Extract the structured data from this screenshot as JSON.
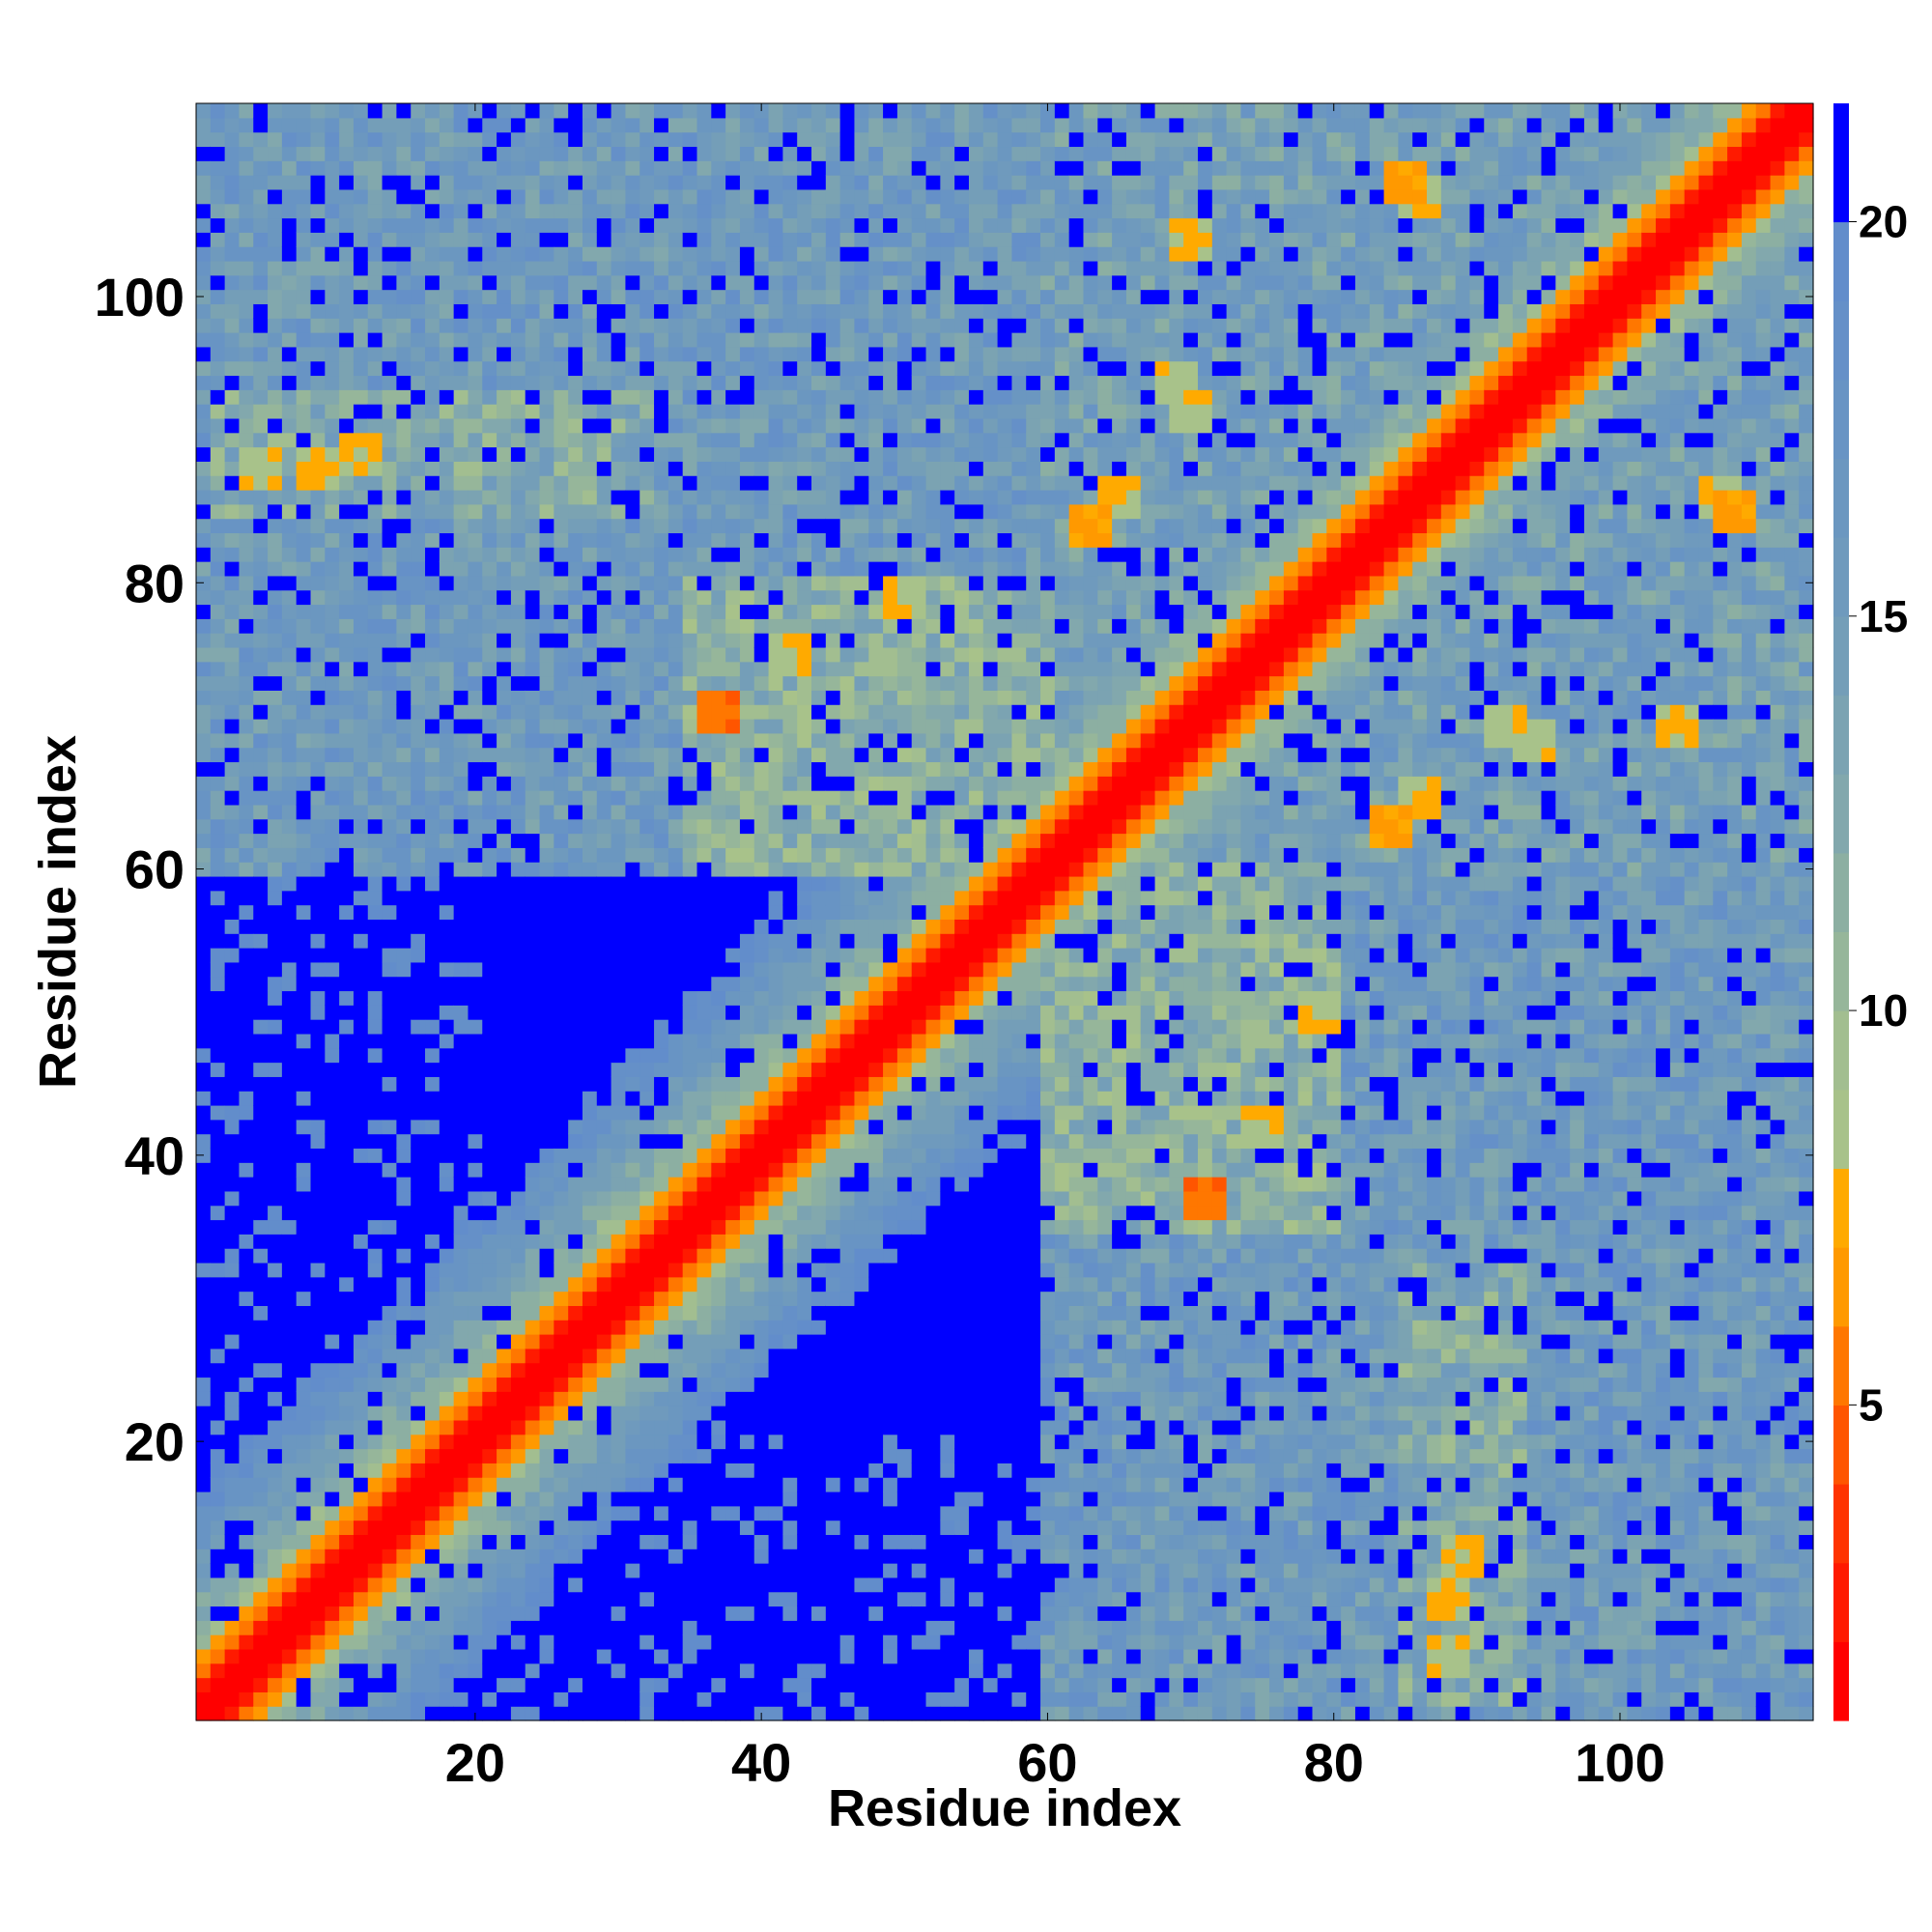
{
  "chart_data": {
    "type": "heatmap",
    "title": "",
    "xlabel": "Residue index",
    "ylabel": "Residue index",
    "n_residues": 113,
    "xlim": [
      1,
      113
    ],
    "ylim": [
      1,
      113
    ],
    "x_ticks": [
      "20",
      "40",
      "60",
      "80",
      "100"
    ],
    "y_ticks": [
      "20",
      "40",
      "60",
      "80",
      "100"
    ],
    "colorbar": {
      "ticks": [
        "5",
        "10",
        "15",
        "20"
      ],
      "range": [
        1,
        21.5
      ],
      "levels": [
        {
          "max": 2,
          "color": "#ff0000"
        },
        {
          "max": 3,
          "color": "#ff1a00"
        },
        {
          "max": 4,
          "color": "#ff3300"
        },
        {
          "max": 5,
          "color": "#ff5500"
        },
        {
          "max": 6,
          "color": "#ff7700"
        },
        {
          "max": 7,
          "color": "#ff9900"
        },
        {
          "max": 8,
          "color": "#ffaa00"
        },
        {
          "max": 9,
          "color": "#a8c28a"
        },
        {
          "max": 10,
          "color": "#a2be90"
        },
        {
          "max": 11,
          "color": "#96b69a"
        },
        {
          "max": 12,
          "color": "#8cafa2"
        },
        {
          "max": 13,
          "color": "#82a8ad"
        },
        {
          "max": 14,
          "color": "#7ba3b2"
        },
        {
          "max": 15,
          "color": "#749eb8"
        },
        {
          "max": 16,
          "color": "#6f9abd"
        },
        {
          "max": 17,
          "color": "#6b97c0"
        },
        {
          "max": 18,
          "color": "#6894c4"
        },
        {
          "max": 19,
          "color": "#6590c8"
        },
        {
          "max": 20,
          "color": "#628dcb"
        },
        {
          "max": 999,
          "color": "#0000ff"
        }
      ]
    },
    "description_values": {
      "diagonal_distance": 1.0,
      "near_diagonal_distance": 6.0,
      "background_distance": 22.0
    },
    "contact_blocks": [
      {
        "x": [
          60,
          113
        ],
        "y": [
          60,
          113
        ],
        "level": 15
      },
      {
        "x": [
          60,
          113
        ],
        "y": [
          1,
          60
        ],
        "level": 16
      },
      {
        "x": [
          1,
          60
        ],
        "y": [
          60,
          113
        ],
        "level": 16
      },
      {
        "x": [
          2,
          32
        ],
        "y": [
          85,
          93
        ],
        "level": 13
      },
      {
        "x": [
          85,
          93
        ],
        "y": [
          2,
          32
        ],
        "level": 13
      },
      {
        "x": [
          35,
          60
        ],
        "y": [
          60,
          80
        ],
        "level": 12
      },
      {
        "x": [
          60,
          80
        ],
        "y": [
          35,
          60
        ],
        "level": 12
      },
      {
        "x": [
          1,
          60
        ],
        "y": [
          1,
          20
        ],
        "level": 22
      },
      {
        "x": [
          1,
          20
        ],
        "y": [
          1,
          60
        ],
        "level": 22
      }
    ],
    "hotspots": [
      {
        "x": 85,
        "y": 108,
        "v": 6
      },
      {
        "x": 86,
        "y": 107,
        "v": 7
      },
      {
        "x": 108,
        "y": 85,
        "v": 6
      },
      {
        "x": 107,
        "y": 86,
        "v": 7
      },
      {
        "x": 65,
        "y": 86,
        "v": 7
      },
      {
        "x": 63,
        "y": 84,
        "v": 6
      },
      {
        "x": 86,
        "y": 65,
        "v": 7
      },
      {
        "x": 84,
        "y": 63,
        "v": 6
      },
      {
        "x": 69,
        "y": 94,
        "v": 7
      },
      {
        "x": 94,
        "y": 69,
        "v": 7
      },
      {
        "x": 5,
        "y": 88,
        "v": 7
      },
      {
        "x": 9,
        "y": 88,
        "v": 7
      },
      {
        "x": 12,
        "y": 89,
        "v": 7
      },
      {
        "x": 88,
        "y": 5,
        "v": 7
      },
      {
        "x": 88,
        "y": 9,
        "v": 7
      },
      {
        "x": 89,
        "y": 12,
        "v": 7
      },
      {
        "x": 92,
        "y": 70,
        "v": 7
      },
      {
        "x": 70,
        "y": 92,
        "v": 7
      },
      {
        "x": 104,
        "y": 70,
        "v": 7
      },
      {
        "x": 70,
        "y": 104,
        "v": 7
      },
      {
        "x": 42,
        "y": 75,
        "v": 7
      },
      {
        "x": 75,
        "y": 42,
        "v": 7
      },
      {
        "x": 50,
        "y": 79,
        "v": 7
      },
      {
        "x": 79,
        "y": 50,
        "v": 7
      },
      {
        "x": 71,
        "y": 37,
        "v": 4
      },
      {
        "x": 37,
        "y": 71,
        "v": 4
      }
    ]
  }
}
